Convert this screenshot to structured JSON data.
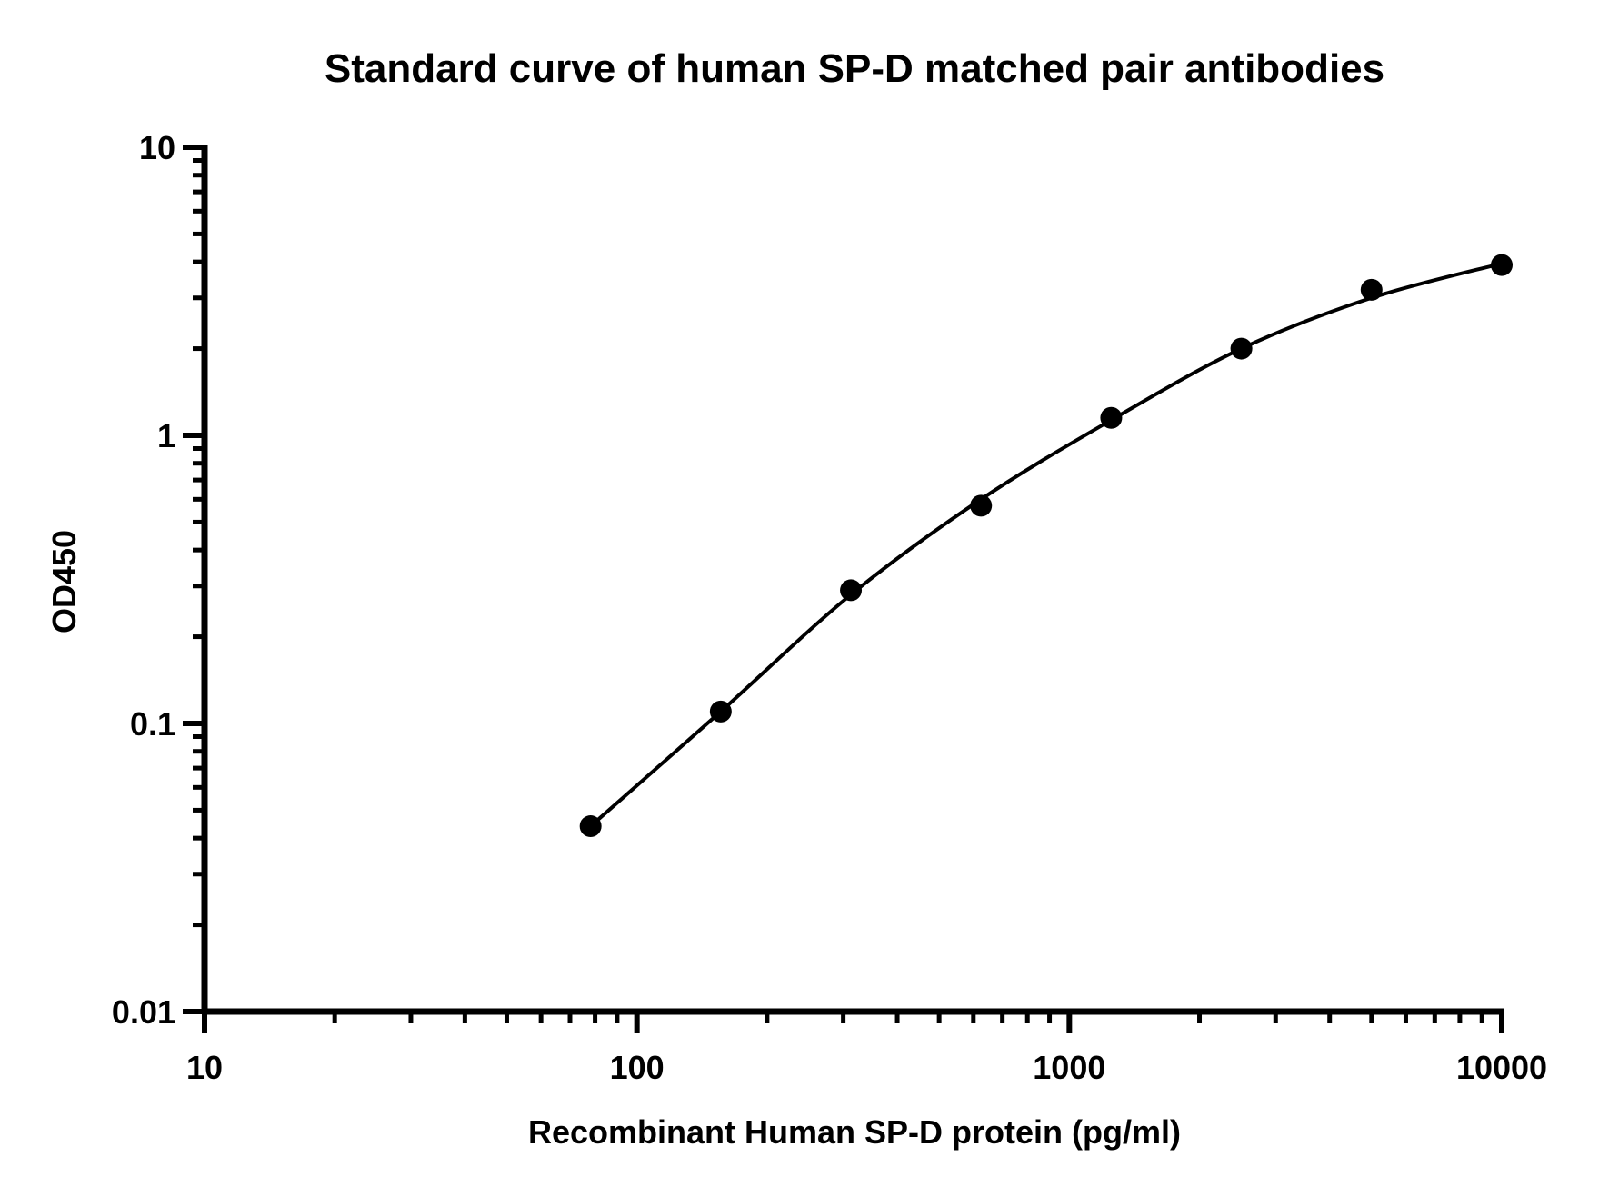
{
  "chart_data": {
    "type": "scatter",
    "title": "Standard curve of human SP-D matched pair antibodies",
    "xlabel": "Recombinant Human SP-D protein (pg/ml)",
    "ylabel": "OD450",
    "x_scale": "log",
    "y_scale": "log",
    "xlim": [
      10,
      10000
    ],
    "ylim": [
      0.01,
      10
    ],
    "x_ticks": [
      {
        "value": 10,
        "label": "10"
      },
      {
        "value": 100,
        "label": "100"
      },
      {
        "value": 1000,
        "label": "1000"
      },
      {
        "value": 10000,
        "label": "10000"
      }
    ],
    "y_ticks": [
      {
        "value": 0.01,
        "label": "0.01"
      },
      {
        "value": 0.1,
        "label": "0.1"
      },
      {
        "value": 1,
        "label": "1"
      },
      {
        "value": 10,
        "label": "10"
      }
    ],
    "grid": false,
    "legend": "none",
    "series": [
      {
        "type": "scatter",
        "x": [
          78.125,
          156.25,
          312.5,
          625,
          1250,
          2500,
          5000,
          10000
        ],
        "y": [
          0.044,
          0.11,
          0.29,
          0.57,
          1.15,
          2.0,
          3.2,
          3.9
        ]
      },
      {
        "type": "line",
        "x": [
          78.125,
          156.25,
          312.5,
          625,
          1250,
          2500,
          5000,
          10000
        ],
        "y": [
          0.044,
          0.11,
          0.28,
          0.6,
          1.13,
          2.0,
          3.0,
          3.95
        ]
      }
    ]
  },
  "colors": {
    "ink": "#000000",
    "background": "#ffffff"
  }
}
